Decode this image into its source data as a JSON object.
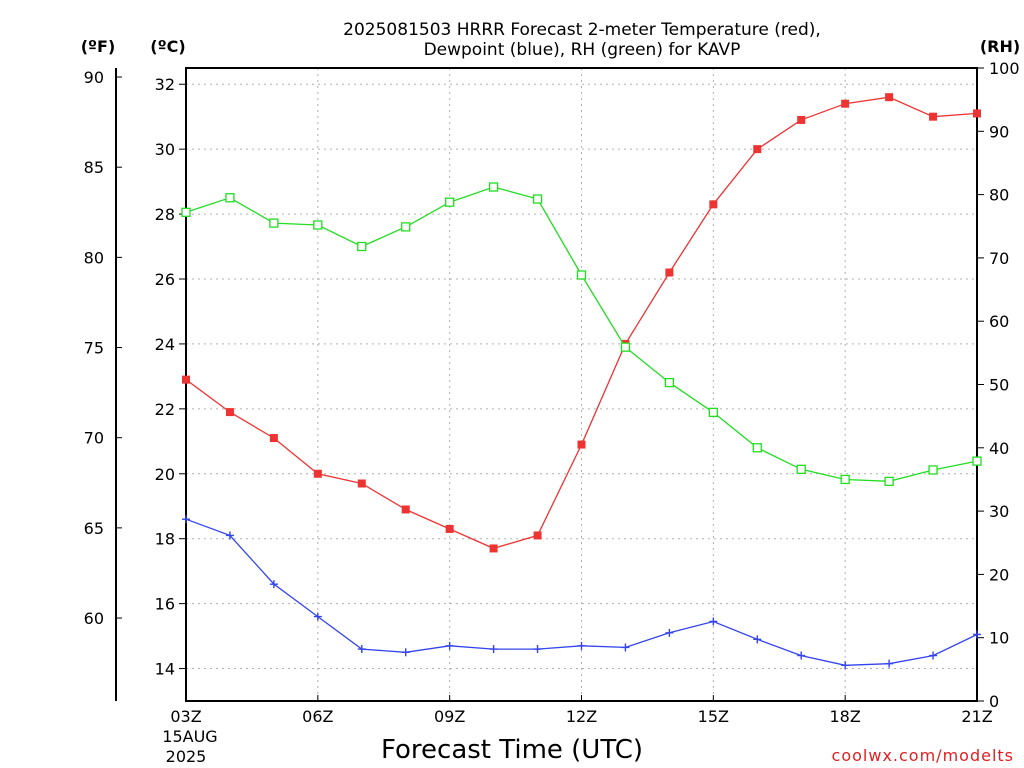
{
  "chart_data": {
    "type": "line",
    "title_lines": [
      "2025081503 HRRR Forecast 2-meter Temperature (red),",
      "Dewpoint (blue), RH (green) for KAVP"
    ],
    "xlabel": "Forecast Time (UTC)",
    "units": {
      "fahrenheit": "(ºF)",
      "celsius": "(ºC)",
      "rh": "(RH)"
    },
    "date_label": [
      "15AUG",
      "2025"
    ],
    "x": [
      "03Z",
      "04Z",
      "05Z",
      "06Z",
      "07Z",
      "08Z",
      "09Z",
      "10Z",
      "11Z",
      "12Z",
      "13Z",
      "14Z",
      "15Z",
      "16Z",
      "17Z",
      "18Z",
      "19Z",
      "20Z",
      "21Z"
    ],
    "x_ticks": [
      "03Z",
      "06Z",
      "09Z",
      "12Z",
      "15Z",
      "18Z",
      "21Z"
    ],
    "axes": {
      "celsius": {
        "ylim": [
          13,
          32.5
        ],
        "ticks": [
          14,
          16,
          18,
          20,
          22,
          24,
          26,
          28,
          30,
          32
        ]
      },
      "fahrenheit": {
        "ticks": [
          60,
          65,
          70,
          75,
          80,
          85,
          90
        ]
      },
      "rh": {
        "ylim": [
          0,
          100
        ],
        "ticks": [
          0,
          10,
          20,
          30,
          40,
          50,
          60,
          70,
          80,
          90,
          100
        ]
      }
    },
    "grid": true,
    "series": [
      {
        "name": "Temperature",
        "axis": "celsius",
        "color": "#ee3333",
        "marker": "filled-square",
        "values": [
          22.9,
          21.9,
          21.1,
          20.0,
          19.7,
          18.9,
          18.3,
          17.7,
          18.1,
          20.9,
          24.0,
          26.2,
          28.3,
          30.0,
          30.9,
          31.4,
          31.6,
          31.0,
          31.1
        ]
      },
      {
        "name": "Dewpoint",
        "axis": "celsius",
        "color": "#3344ee",
        "marker": "plus",
        "values": [
          18.6,
          18.1,
          16.6,
          15.6,
          14.6,
          14.5,
          14.7,
          14.6,
          14.6,
          14.7,
          14.65,
          15.1,
          15.45,
          14.9,
          14.4,
          14.1,
          14.15,
          14.4,
          15.05
        ]
      },
      {
        "name": "RH",
        "axis": "rh",
        "color": "#22dd22",
        "marker": "open-square",
        "values": [
          77.2,
          79.5,
          75.5,
          75.2,
          71.8,
          74.9,
          78.8,
          81.2,
          79.3,
          67.3,
          55.9,
          50.3,
          45.6,
          40.0,
          36.6,
          35.0,
          34.7,
          36.5,
          37.9
        ]
      }
    ],
    "credit": "coolwx.com/modelts"
  }
}
